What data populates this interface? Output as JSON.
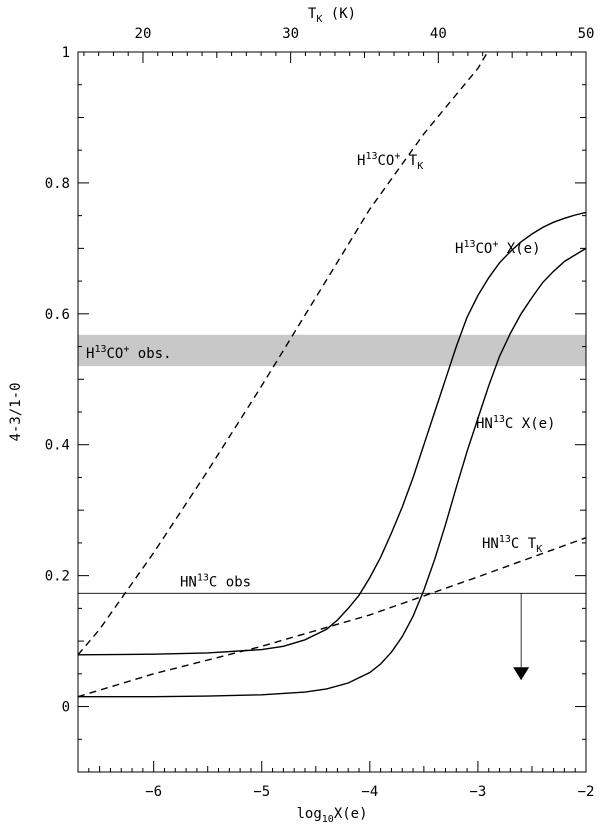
{
  "chart_data": {
    "type": "line",
    "xlabel": "log10X(e)",
    "ylabel": "4-3/1-0",
    "top_xlabel": "T_K (K)",
    "xlim": [
      -6.7,
      -2.0
    ],
    "ylim": [
      -0.1,
      1.0
    ],
    "top_xlim": [
      15.6,
      50
    ],
    "x_ticks": [
      -6,
      -5,
      -4,
      -3,
      -2
    ],
    "x_tick_labels": [
      "−6",
      "−5",
      "−4",
      "−3",
      "−2"
    ],
    "y_ticks": [
      0,
      0.2,
      0.4,
      0.6,
      0.8,
      1
    ],
    "y_tick_labels": [
      "0",
      "0.2",
      "0.4",
      "0.6",
      "0.8",
      "1"
    ],
    "top_ticks": [
      20,
      30,
      40,
      50
    ],
    "top_tick_labels": [
      "20",
      "30",
      "40",
      "50"
    ],
    "series": [
      {
        "label": {
          "base": "H",
          "sup1": "13",
          "mid": "CO",
          "sup2": "+",
          "tail": " X(e)"
        },
        "style": "solid",
        "x": [
          -6.7,
          -6.0,
          -5.5,
          -5.0,
          -4.8,
          -4.6,
          -4.4,
          -4.3,
          -4.2,
          -4.1,
          -4.0,
          -3.9,
          -3.8,
          -3.7,
          -3.6,
          -3.5,
          -3.4,
          -3.3,
          -3.2,
          -3.1,
          -3.0,
          -2.9,
          -2.8,
          -2.7,
          -2.6,
          -2.5,
          -2.4,
          -2.3,
          -2.2,
          -2.1,
          -2.0
        ],
        "y": [
          0.079,
          0.08,
          0.082,
          0.087,
          0.092,
          0.102,
          0.118,
          0.132,
          0.15,
          0.17,
          0.197,
          0.228,
          0.265,
          0.305,
          0.35,
          0.4,
          0.45,
          0.5,
          0.55,
          0.595,
          0.628,
          0.655,
          0.678,
          0.695,
          0.71,
          0.722,
          0.732,
          0.74,
          0.746,
          0.751,
          0.755
        ]
      },
      {
        "label": {
          "base": "HN",
          "sup1": "13",
          "mid": "C",
          "sup2": "",
          "tail": " X(e)"
        },
        "style": "solid",
        "x": [
          -6.7,
          -6.0,
          -5.5,
          -5.0,
          -4.6,
          -4.4,
          -4.2,
          -4.0,
          -3.9,
          -3.8,
          -3.7,
          -3.6,
          -3.5,
          -3.4,
          -3.3,
          -3.2,
          -3.1,
          -3.0,
          -2.9,
          -2.8,
          -2.7,
          -2.6,
          -2.5,
          -2.4,
          -2.3,
          -2.2,
          -2.1,
          -2.0
        ],
        "y": [
          0.015,
          0.015,
          0.016,
          0.018,
          0.022,
          0.027,
          0.036,
          0.052,
          0.065,
          0.083,
          0.107,
          0.138,
          0.178,
          0.225,
          0.278,
          0.335,
          0.39,
          0.44,
          0.49,
          0.535,
          0.57,
          0.6,
          0.625,
          0.648,
          0.665,
          0.68,
          0.69,
          0.7
        ]
      },
      {
        "label": {
          "base": "H",
          "sup1": "13",
          "mid": "CO",
          "sup2": "+",
          "tail": " T",
          "sub": "K"
        },
        "style": "dashed",
        "x": [
          -6.7,
          -6.5,
          -6.0,
          -5.5,
          -5.0,
          -4.5,
          -4.0,
          -3.5,
          -3.0,
          -2.91
        ],
        "y": [
          0.079,
          0.118,
          0.235,
          0.36,
          0.49,
          0.625,
          0.76,
          0.875,
          0.975,
          1.0
        ]
      },
      {
        "label": {
          "base": "HN",
          "sup1": "13",
          "mid": "C",
          "sup2": "",
          "tail": " T",
          "sub": "K"
        },
        "style": "dashed",
        "x": [
          -6.7,
          -6.0,
          -5.0,
          -4.0,
          -3.0,
          -2.0
        ],
        "y": [
          0.015,
          0.05,
          0.092,
          0.14,
          0.198,
          0.258
        ]
      }
    ],
    "observations": [
      {
        "label": {
          "base": "H",
          "sup1": "13",
          "mid": "CO",
          "sup2": "+",
          "tail": " obs."
        },
        "kind": "band",
        "y_range": [
          0.52,
          0.568
        ]
      },
      {
        "label": {
          "base": "HN",
          "sup1": "13",
          "mid": "C",
          "sup2": "",
          "tail": " obs"
        },
        "kind": "upper-limit",
        "y": 0.173,
        "arrow_x": -2.6,
        "arrow_to_y": 0.06
      }
    ],
    "grid": false,
    "legend": "none"
  }
}
